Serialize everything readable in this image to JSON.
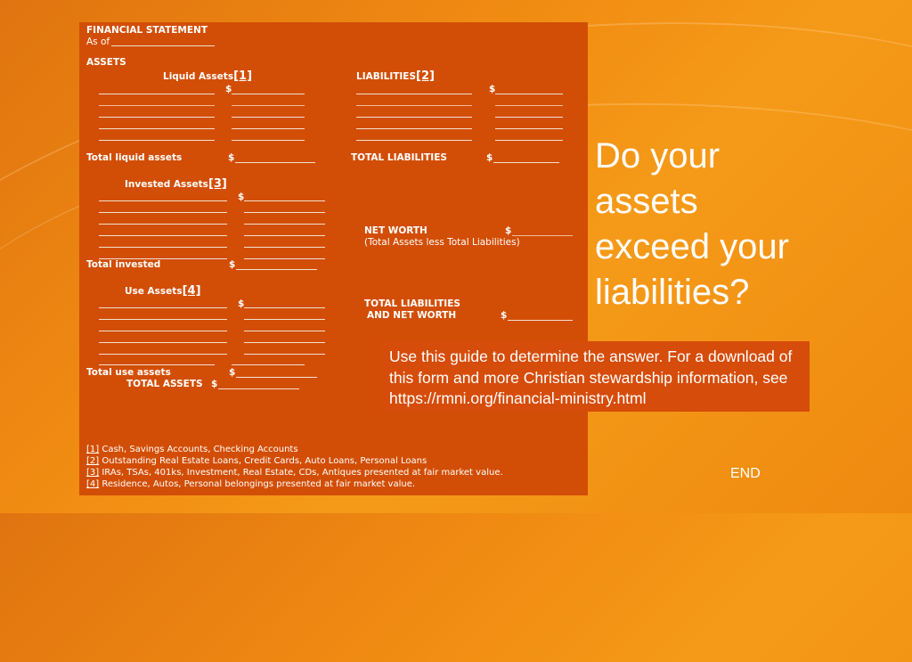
{
  "form": {
    "title": "FINANCIAL STATEMENT",
    "as_of": "As of",
    "assets_heading": "ASSETS",
    "liquid_heading": "Liquid Assets",
    "liquid_ref": "[1]",
    "liabilities_heading": "LIABILITIES",
    "liabilities_ref": "[2]",
    "dollar": "$",
    "total_liquid": "Total liquid assets",
    "total_liabilities": "TOTAL LIABILITIES",
    "invested_heading": "Invested Assets",
    "invested_ref": "[3]",
    "net_worth": "NET WORTH",
    "net_worth_note": "(Total Assets less Total Liabilities)",
    "total_invested": "Total invested",
    "use_heading": "Use Assets",
    "use_ref": "[4]",
    "total_liab_and": "TOTAL LIABILITIES",
    "and_net_worth": "AND NET WORTH",
    "total_use": "Total use assets",
    "total_assets": "TOTAL ASSETS",
    "footnotes": [
      {
        "key": "[1]",
        "text": "Cash, Savings Accounts, Checking Accounts"
      },
      {
        "key": "[2]",
        "text": "Outstanding Real Estate Loans, Credit Cards, Auto Loans, Personal Loans"
      },
      {
        "key": "[3]",
        "text": "IRAs, TSAs, 401ks, Investment, Real Estate, CDs, Antiques presented at fair market value."
      },
      {
        "key": "[4]",
        "text": "Residence, Autos, Personal belongings presented at fair market value."
      }
    ]
  },
  "headline": {
    "lines": [
      "Do your",
      "assets",
      "exceed your",
      "liabilities?"
    ]
  },
  "guide": {
    "text": "Use this guide to determine the answer. For a download of this form and more Christian stewardship information, see https://rmni.org/financial-ministry.html"
  },
  "end_label": "END"
}
